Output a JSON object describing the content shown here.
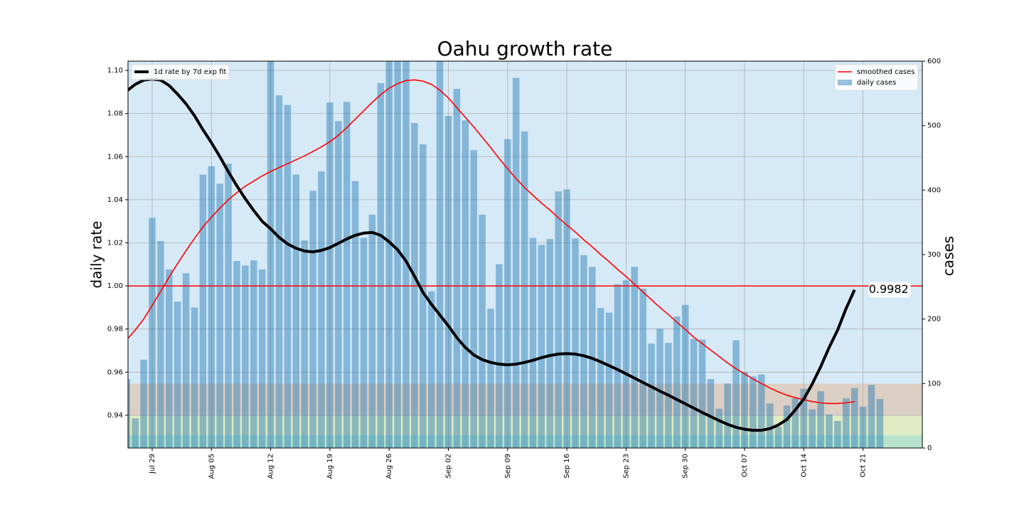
{
  "chart_data": {
    "type": "combo",
    "title": "Oahu growth rate",
    "ylabel": "daily rate",
    "y2label": "cases",
    "categories": [
      null,
      null,
      null,
      "Jul 29",
      null,
      null,
      null,
      null,
      null,
      null,
      "Aug 05",
      null,
      null,
      null,
      null,
      null,
      null,
      "Aug 12",
      null,
      null,
      null,
      null,
      null,
      null,
      "Aug 19",
      null,
      null,
      null,
      null,
      null,
      null,
      "Aug 26",
      null,
      null,
      null,
      null,
      null,
      null,
      "Sep 02",
      null,
      null,
      null,
      null,
      null,
      null,
      "Sep 09",
      null,
      null,
      null,
      null,
      null,
      null,
      "Sep 16",
      null,
      null,
      null,
      null,
      null,
      null,
      "Sep 23",
      null,
      null,
      null,
      null,
      null,
      null,
      "Sep 30",
      null,
      null,
      null,
      null,
      null,
      null,
      "Oct 07",
      null,
      null,
      null,
      null,
      null,
      null,
      "Oct 14",
      null,
      null,
      null,
      null,
      null,
      null,
      "Oct 21",
      null,
      null
    ],
    "ylim": [
      0.9248,
      1.1043
    ],
    "yticks": [
      {
        "value": 0.94,
        "label": "0.94"
      },
      {
        "value": 0.96,
        "label": "0.96"
      },
      {
        "value": 0.98,
        "label": "0.98"
      },
      {
        "value": 1.0,
        "label": "1.00"
      },
      {
        "value": 1.02,
        "label": "1.02"
      },
      {
        "value": 1.04,
        "label": "1.04"
      },
      {
        "value": 1.06,
        "label": "1.06"
      },
      {
        "value": 1.08,
        "label": "1.08"
      },
      {
        "value": 1.1,
        "label": "1.10"
      }
    ],
    "y2lim": [
      0,
      600
    ],
    "y2ticks": [
      0,
      100,
      200,
      300,
      400,
      500,
      600
    ],
    "grid": true,
    "reference_line": {
      "value": 1.0,
      "color": "#ff0000"
    },
    "annotation": {
      "text": "0.9982"
    },
    "bands": [
      {
        "from": 100,
        "to": 600,
        "color": "#d6e9f6"
      },
      {
        "from": 50,
        "to": 100,
        "color": "#dccfc4"
      },
      {
        "from": 20,
        "to": 50,
        "color": "#e0ecc4"
      },
      {
        "from": 0,
        "to": 20,
        "color": "#b8e2cc"
      }
    ],
    "series": [
      {
        "name": "daily cases",
        "type": "bar",
        "axis": "y2",
        "color": "#1f77b4",
        "legend": "upper right",
        "values": [
          107,
          46,
          137,
          357,
          321,
          277,
          227,
          271,
          218,
          424,
          437,
          410,
          441,
          290,
          283,
          291,
          277,
          620,
          547,
          532,
          424,
          322,
          399,
          429,
          536,
          507,
          537,
          414,
          326,
          362,
          566,
          610,
          620,
          615,
          504,
          471,
          243,
          630,
          515,
          557,
          508,
          462,
          362,
          216,
          285,
          479,
          574,
          491,
          326,
          315,
          324,
          398,
          401,
          325,
          299,
          281,
          217,
          210,
          254,
          260,
          281,
          247,
          162,
          185,
          163,
          204,
          222,
          169,
          168,
          107,
          61,
          100,
          167,
          118,
          111,
          114,
          69,
          33,
          66,
          77,
          92,
          60,
          88,
          52,
          42,
          77,
          93,
          64,
          98,
          76
        ]
      },
      {
        "name": "smoothed cases",
        "type": "line",
        "axis": "y2",
        "color": "#ff0000",
        "legend": "upper right",
        "values": [
          168,
          183,
          200,
          221,
          243,
          265,
          286,
          306,
          325,
          343,
          358,
          372,
          385,
          396,
          406,
          414,
          422,
          429,
          435,
          441,
          447,
          453,
          460,
          467,
          475,
          485,
          497,
          510,
          523,
          536,
          548,
          558,
          565,
          570,
          571,
          569,
          564,
          555,
          543,
          528,
          513,
          498,
          482,
          466,
          449,
          433,
          418,
          404,
          392,
          380,
          369,
          357,
          346,
          335,
          323,
          312,
          300,
          289,
          277,
          266,
          254,
          242,
          230,
          218,
          207,
          195,
          184,
          172,
          162,
          152,
          142,
          132,
          123,
          115,
          107,
          100,
          93,
          87,
          82,
          78,
          75,
          72,
          70,
          69,
          69,
          70,
          72,
          null,
          null,
          null
        ]
      },
      {
        "name": "1d rate by 7d exp fit",
        "type": "line",
        "axis": "y",
        "color": "#000000",
        "legend": "upper left",
        "values": [
          1.0905,
          1.0935,
          1.0955,
          1.096,
          1.0955,
          1.093,
          1.089,
          1.0845,
          1.079,
          1.0725,
          1.0665,
          1.06,
          1.053,
          1.0465,
          1.0405,
          1.035,
          1.03,
          1.0265,
          1.0225,
          1.0195,
          1.0175,
          1.0162,
          1.0158,
          1.0165,
          1.0178,
          1.0198,
          1.0218,
          1.0235,
          1.0245,
          1.0248,
          1.0235,
          1.0205,
          1.0168,
          1.0115,
          1.0045,
          0.997,
          0.9915,
          0.9865,
          0.9815,
          0.976,
          0.9715,
          0.968,
          0.9658,
          0.9645,
          0.9637,
          0.9634,
          0.9637,
          0.9645,
          0.9655,
          0.9667,
          0.9677,
          0.9684,
          0.9686,
          0.9684,
          0.9676,
          0.9664,
          0.9648,
          0.963,
          0.9612,
          0.9592,
          0.9572,
          0.9552,
          0.9532,
          0.9512,
          0.9493,
          0.9473,
          0.9453,
          0.9433,
          0.9413,
          0.9394,
          0.9375,
          0.9358,
          0.9344,
          0.9335,
          0.933,
          0.933,
          0.9338,
          0.9355,
          0.938,
          0.9425,
          0.9475,
          0.9545,
          0.9625,
          0.9715,
          0.9795,
          0.9895,
          0.9982,
          null,
          null,
          null
        ]
      }
    ]
  }
}
